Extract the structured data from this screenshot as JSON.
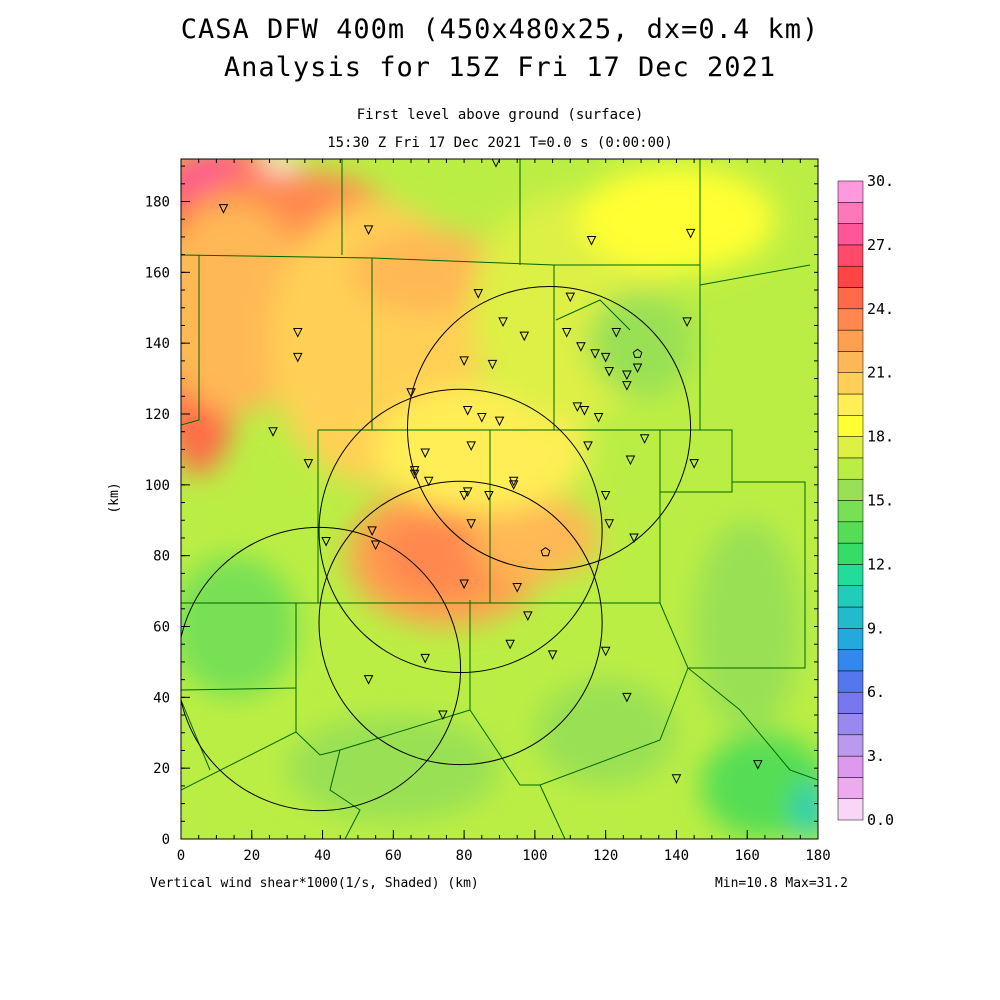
{
  "title": {
    "line1": "CASA DFW 400m (450x480x25, dx=0.4 km)",
    "line2": "Analysis for 15Z Fri 17 Dec 2021"
  },
  "subtitle": {
    "line1": "First level above ground (surface)",
    "line2": "15:30 Z Fri 17 Dec 2021    T=0.0 s (0:00:00)"
  },
  "footer": {
    "left": "Vertical wind shear*1000(1/s, Shaded)  (km)",
    "right": "Min=10.8 Max=31.2"
  },
  "axes": {
    "x_ticks": [
      "0",
      "20",
      "40",
      "60",
      "80",
      "100",
      "120",
      "140",
      "160",
      "180"
    ],
    "y_ticks": [
      "0",
      "20",
      "40",
      "60",
      "80",
      "100",
      "120",
      "140",
      "160",
      "180"
    ],
    "y_label": "(km)",
    "x_range": [
      0,
      180
    ],
    "y_range": [
      0,
      192
    ]
  },
  "colorbar": {
    "labels": [
      "30.",
      "27.",
      "24.",
      "21.",
      "18.",
      "15.",
      "12.",
      "9.",
      "6.",
      "3.",
      "0.0"
    ],
    "colors": [
      "#f9d6f7",
      "#eeaaee",
      "#dd99ee",
      "#bb99ee",
      "#9988ee",
      "#7777ee",
      "#5577ee",
      "#3388ee",
      "#22aadd",
      "#22bbcc",
      "#22ccbb",
      "#22dd99",
      "#33dd66",
      "#55dd55",
      "#77e055",
      "#99e055",
      "#bbee44",
      "#ddf044",
      "#ffff33",
      "#ffee55",
      "#ffd055",
      "#ffb855",
      "#ffa050",
      "#ff8850",
      "#ff6a4a",
      "#ff4444",
      "#ff4a6a",
      "#ff5599",
      "#ff77bb",
      "#ff99dd"
    ]
  },
  "colors": {
    "background_field": "#bbee44",
    "county_lines": "#006600",
    "range_rings": "#000000"
  },
  "field_blobs": [
    {
      "cx": 12,
      "cy": 180,
      "rx": 22,
      "ry": 16,
      "color": "#ff6a4a"
    },
    {
      "cx": 10,
      "cy": 185,
      "rx": 12,
      "ry": 8,
      "color": "#ff5599"
    },
    {
      "cx": 28,
      "cy": 190,
      "rx": 5,
      "ry": 4,
      "color": "#ffffff"
    },
    {
      "cx": 30,
      "cy": 175,
      "rx": 30,
      "ry": 14,
      "color": "#ff8850"
    },
    {
      "cx": 5,
      "cy": 125,
      "rx": 10,
      "ry": 22,
      "color": "#ff6a4a"
    },
    {
      "cx": 15,
      "cy": 150,
      "rx": 22,
      "ry": 30,
      "color": "#ffb855"
    },
    {
      "cx": 55,
      "cy": 140,
      "rx": 30,
      "ry": 40,
      "color": "#ffd055"
    },
    {
      "cx": 70,
      "cy": 160,
      "rx": 22,
      "ry": 12,
      "color": "#ffb855"
    },
    {
      "cx": 75,
      "cy": 80,
      "rx": 28,
      "ry": 20,
      "color": "#ffa050"
    },
    {
      "cx": 72,
      "cy": 80,
      "rx": 16,
      "ry": 12,
      "color": "#ff8850"
    },
    {
      "cx": 100,
      "cy": 85,
      "rx": 18,
      "ry": 12,
      "color": "#ffb855"
    },
    {
      "cx": 85,
      "cy": 110,
      "rx": 30,
      "ry": 18,
      "color": "#ffee55"
    },
    {
      "cx": 110,
      "cy": 150,
      "rx": 28,
      "ry": 32,
      "color": "#ddf044"
    },
    {
      "cx": 140,
      "cy": 175,
      "rx": 28,
      "ry": 15,
      "color": "#ffff33"
    },
    {
      "cx": 130,
      "cy": 140,
      "rx": 15,
      "ry": 15,
      "color": "#99e055"
    },
    {
      "cx": 15,
      "cy": 60,
      "rx": 18,
      "ry": 20,
      "color": "#77e055"
    },
    {
      "cx": 165,
      "cy": 15,
      "rx": 18,
      "ry": 15,
      "color": "#55dd55"
    },
    {
      "cx": 178,
      "cy": 8,
      "rx": 5,
      "ry": 8,
      "color": "#22ccbb"
    },
    {
      "cx": 160,
      "cy": 60,
      "rx": 15,
      "ry": 30,
      "color": "#99e055"
    },
    {
      "cx": 60,
      "cy": 20,
      "rx": 30,
      "ry": 15,
      "color": "#99e055"
    },
    {
      "cx": 120,
      "cy": 30,
      "rx": 20,
      "ry": 15,
      "color": "#99e055"
    }
  ],
  "range_rings": [
    {
      "cx": 79,
      "cy": 87,
      "r": 40
    },
    {
      "cx": 39,
      "cy": 48,
      "r": 40
    },
    {
      "cx": 79,
      "cy": 61,
      "r": 40
    },
    {
      "cx": 104,
      "cy": 116,
      "r": 40
    }
  ],
  "stations": [
    [
      12,
      178
    ],
    [
      53,
      172
    ],
    [
      33,
      143
    ],
    [
      33,
      136
    ],
    [
      84,
      154
    ],
    [
      91,
      146
    ],
    [
      80,
      135
    ],
    [
      88,
      134
    ],
    [
      97,
      142
    ],
    [
      110,
      153
    ],
    [
      109,
      143
    ],
    [
      113,
      139
    ],
    [
      117,
      137
    ],
    [
      120,
      136
    ],
    [
      121,
      132
    ],
    [
      123,
      143
    ],
    [
      126,
      131
    ],
    [
      126,
      128
    ],
    [
      129,
      133
    ],
    [
      112,
      122
    ],
    [
      114,
      121
    ],
    [
      118,
      119
    ],
    [
      81,
      121
    ],
    [
      85,
      119
    ],
    [
      90,
      118
    ],
    [
      65,
      126
    ],
    [
      26,
      115
    ],
    [
      36,
      106
    ],
    [
      66,
      104
    ],
    [
      69,
      109
    ],
    [
      70,
      101
    ],
    [
      66,
      103
    ],
    [
      82,
      111
    ],
    [
      80,
      97
    ],
    [
      81,
      98
    ],
    [
      87,
      97
    ],
    [
      94,
      101
    ],
    [
      94,
      100
    ],
    [
      82,
      89
    ],
    [
      115,
      111
    ],
    [
      127,
      107
    ],
    [
      131,
      113
    ],
    [
      145,
      106
    ],
    [
      120,
      97
    ],
    [
      121,
      89
    ],
    [
      128,
      85
    ],
    [
      54,
      87
    ],
    [
      55,
      83
    ],
    [
      41,
      84
    ],
    [
      80,
      72
    ],
    [
      95,
      71
    ],
    [
      98,
      63
    ],
    [
      93,
      55
    ],
    [
      69,
      51
    ],
    [
      53,
      45
    ],
    [
      74,
      35
    ],
    [
      105,
      52
    ],
    [
      120,
      53
    ],
    [
      126,
      40
    ],
    [
      140,
      17
    ],
    [
      163,
      21
    ],
    [
      116,
      169
    ],
    [
      144,
      171
    ],
    [
      143,
      146
    ],
    [
      89,
      191
    ]
  ],
  "special_stations": [
    [
      103,
      81
    ],
    [
      129,
      137
    ]
  ]
}
